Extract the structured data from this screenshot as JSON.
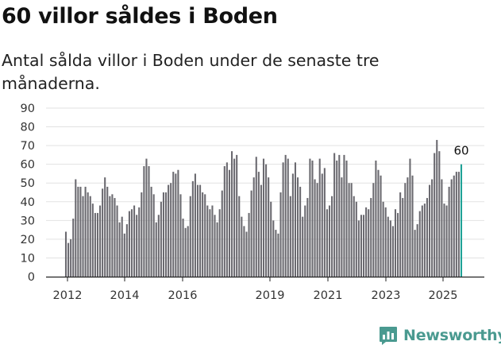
{
  "title": "60 villor såldes i Boden",
  "subtitle": "Antal sålda villor i Boden under de senaste tre månaderna.",
  "brand": {
    "name": "Newsworthy",
    "icon": "bar-chart-logo-icon"
  },
  "colors": {
    "bar": "#6b6a70",
    "highlight": "#1ea196",
    "grid": "#e2e2e2",
    "axis": "#222222",
    "brand": "#4a9a90"
  },
  "chart_data": {
    "type": "bar",
    "title": "60 villor såldes i Boden",
    "xlabel": "",
    "ylabel": "",
    "ylim": [
      0,
      90
    ],
    "y_ticks": [
      0,
      10,
      20,
      30,
      40,
      50,
      60,
      70,
      80,
      90
    ],
    "x_ticks": [
      "2012",
      "2014",
      "2016",
      "2019",
      "2021",
      "2023",
      "2025"
    ],
    "grid": true,
    "last_label": "60",
    "values": [
      24,
      18,
      20,
      31,
      52,
      48,
      48,
      43,
      48,
      45,
      43,
      39,
      34,
      34,
      38,
      47,
      53,
      48,
      43,
      44,
      42,
      38,
      29,
      32,
      23,
      28,
      35,
      36,
      38,
      33,
      37,
      45,
      59,
      63,
      59,
      48,
      44,
      29,
      33,
      40,
      45,
      45,
      49,
      50,
      56,
      55,
      57,
      44,
      31,
      26,
      27,
      43,
      51,
      55,
      49,
      49,
      45,
      44,
      38,
      36,
      38,
      33,
      29,
      36,
      46,
      59,
      61,
      57,
      67,
      63,
      65,
      43,
      32,
      27,
      24,
      34,
      46,
      53,
      64,
      56,
      49,
      63,
      60,
      53,
      40,
      30,
      25,
      23,
      45,
      61,
      65,
      63,
      43,
      55,
      61,
      53,
      48,
      32,
      38,
      42,
      63,
      62,
      52,
      50,
      63,
      55,
      58,
      36,
      38,
      43,
      66,
      62,
      65,
      53,
      65,
      62,
      50,
      50,
      43,
      40,
      30,
      33,
      33,
      37,
      36,
      42,
      50,
      62,
      57,
      54,
      40,
      37,
      32,
      30,
      27,
      36,
      34,
      45,
      42,
      50,
      53,
      63,
      54,
      25,
      28,
      35,
      38,
      39,
      42,
      49,
      52,
      66,
      73,
      67,
      52,
      39,
      38,
      48,
      52,
      54,
      56,
      56,
      60
    ]
  }
}
